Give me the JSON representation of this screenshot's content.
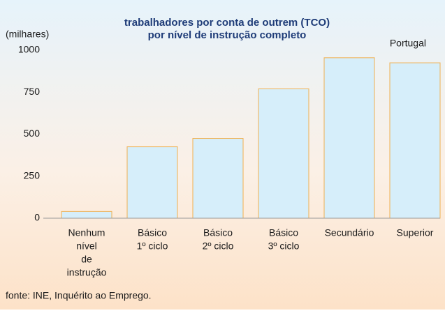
{
  "chart_data": {
    "type": "bar",
    "title": [
      "trabalhadores por conta de outrem (TCO)",
      "por nível de instrução completo"
    ],
    "y_label": "(milhares)",
    "annotation": "Portugal",
    "source": "fonte: INE, Inquérito ao Emprego.",
    "categories": [
      [
        "Nenhum",
        "nível",
        "de",
        "instrução"
      ],
      [
        "Básico",
        "1º ciclo"
      ],
      [
        "Básico",
        "2º ciclo"
      ],
      [
        "Básico",
        "3º ciclo"
      ],
      [
        "Secundário"
      ],
      [
        "Superior"
      ]
    ],
    "values": [
      40,
      425,
      475,
      770,
      955,
      925
    ],
    "color": "#d6eefa",
    "edge_color": "#f0b050",
    "ylim": [
      0,
      1000
    ],
    "yticks": [
      0,
      250,
      500,
      750,
      1000
    ],
    "grid": false
  }
}
